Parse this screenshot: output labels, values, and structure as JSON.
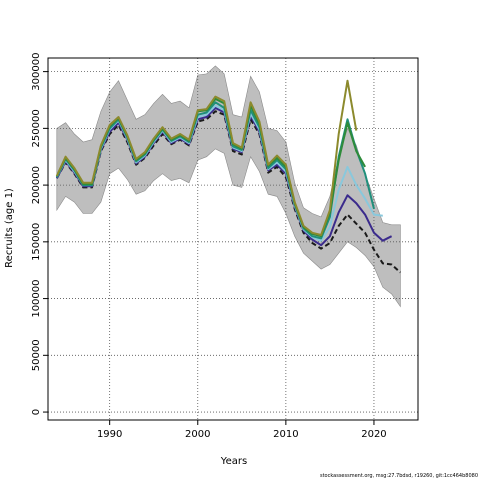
{
  "chart_data": {
    "type": "line",
    "title": "",
    "xlabel": "Years",
    "ylabel": "Recruits (age 1)",
    "xlim": [
      1983,
      2025
    ],
    "ylim": [
      -7000,
      312000
    ],
    "x_ticks": [
      1990,
      2000,
      2010,
      2020
    ],
    "y_ticks": [
      0,
      50000,
      100000,
      150000,
      200000,
      250000,
      300000
    ],
    "x_tick_labels": [
      "1990",
      "2000",
      "2010",
      "2020"
    ],
    "y_tick_labels": [
      "0",
      "50000",
      "100000",
      "150000",
      "200000",
      "250000",
      "300000"
    ],
    "grid": true,
    "legend": "none",
    "footer": "stockassessment.org, msg:27.7bdsd, r19260, git:1cc464b8080",
    "confidence_band": {
      "x": [
        1984,
        1985,
        1986,
        1987,
        1988,
        1989,
        1990,
        1991,
        1992,
        1993,
        1994,
        1995,
        1996,
        1997,
        1998,
        1999,
        2000,
        2001,
        2002,
        2003,
        2004,
        2005,
        2006,
        2007,
        2008,
        2009,
        2010,
        2011,
        2012,
        2013,
        2014,
        2015,
        2016,
        2017,
        2018,
        2019,
        2020,
        2021,
        2022,
        2023
      ],
      "upper": [
        250000,
        255000,
        245000,
        238000,
        240000,
        265000,
        282000,
        292000,
        275000,
        258000,
        262000,
        272000,
        280000,
        272000,
        274000,
        268000,
        297000,
        298000,
        305000,
        298000,
        262000,
        260000,
        296000,
        282000,
        250000,
        248000,
        238000,
        202000,
        180000,
        175000,
        172000,
        190000,
        225000,
        250000,
        235000,
        210000,
        188000,
        167000,
        165000,
        165000
      ],
      "lower": [
        178000,
        190000,
        185000,
        175000,
        175000,
        185000,
        210000,
        215000,
        205000,
        192000,
        195000,
        204000,
        210000,
        204000,
        206000,
        202000,
        222000,
        225000,
        232000,
        228000,
        200000,
        198000,
        225000,
        212000,
        192000,
        190000,
        175000,
        155000,
        140000,
        133000,
        126000,
        130000,
        140000,
        150000,
        145000,
        138000,
        128000,
        110000,
        104000,
        93000
      ]
    },
    "series": [
      {
        "color": "#1a1a1a",
        "dash": "5,3",
        "x": [
          1984,
          1985,
          1986,
          1987,
          1988,
          1989,
          1990,
          1991,
          1992,
          1993,
          1994,
          1995,
          1996,
          1997,
          1998,
          1999,
          2000,
          2001,
          2002,
          2003,
          2004,
          2005,
          2006,
          2007,
          2008,
          2009,
          2010,
          2011,
          2012,
          2013,
          2014,
          2015,
          2016,
          2017,
          2018,
          2019,
          2020,
          2021,
          2022,
          2023
        ],
        "values": [
          206000,
          220000,
          210000,
          198000,
          198000,
          230000,
          245000,
          253000,
          238000,
          218000,
          224000,
          235000,
          245000,
          236000,
          240000,
          235000,
          256000,
          258000,
          265000,
          262000,
          230000,
          227000,
          258000,
          245000,
          211000,
          216000,
          207000,
          179000,
          158000,
          149000,
          144000,
          149000,
          164000,
          174000,
          166000,
          158000,
          143000,
          131000,
          130000,
          123000
        ]
      },
      {
        "color": "#3b2b8c",
        "dash": "",
        "x": [
          1984,
          1985,
          1986,
          1987,
          1988,
          1989,
          1990,
          1991,
          1992,
          1993,
          1994,
          1995,
          1996,
          1997,
          1998,
          1999,
          2000,
          2001,
          2002,
          2003,
          2004,
          2005,
          2006,
          2007,
          2008,
          2009,
          2010,
          2011,
          2012,
          2013,
          2014,
          2015,
          2016,
          2017,
          2018,
          2019,
          2020,
          2021,
          2022
        ],
        "values": [
          206000,
          221000,
          211000,
          199000,
          199000,
          231000,
          247000,
          255000,
          240000,
          219000,
          225000,
          237000,
          247000,
          237000,
          241000,
          236000,
          258000,
          260000,
          268000,
          264000,
          232000,
          229000,
          261000,
          247000,
          213000,
          218000,
          210000,
          181000,
          160000,
          152000,
          147000,
          155000,
          176000,
          191000,
          184000,
          174000,
          158000,
          151000,
          155000
        ]
      },
      {
        "color": "#89c8dc",
        "dash": "",
        "x": [
          1984,
          1985,
          1986,
          1987,
          1988,
          1989,
          1990,
          1991,
          1992,
          1993,
          1994,
          1995,
          1996,
          1997,
          1998,
          1999,
          2000,
          2001,
          2002,
          2003,
          2004,
          2005,
          2006,
          2007,
          2008,
          2009,
          2010,
          2011,
          2012,
          2013,
          2014,
          2015,
          2016,
          2017,
          2018,
          2019,
          2020,
          2021
        ],
        "values": [
          207000,
          222000,
          212000,
          200000,
          200000,
          232000,
          249000,
          257000,
          241000,
          220000,
          226000,
          238000,
          248000,
          238000,
          242000,
          237000,
          260000,
          262000,
          270000,
          266000,
          233000,
          230000,
          263000,
          249000,
          214000,
          220000,
          212000,
          182000,
          161000,
          154000,
          151000,
          163000,
          196000,
          216000,
          200000,
          188000,
          174000,
          173000
        ]
      },
      {
        "color": "#1f8f7b",
        "dash": "",
        "x": [
          1984,
          1985,
          1986,
          1987,
          1988,
          1989,
          1990,
          1991,
          1992,
          1993,
          1994,
          1995,
          1996,
          1997,
          1998,
          1999,
          2000,
          2001,
          2002,
          2003,
          2004,
          2005,
          2006,
          2007,
          2008,
          2009,
          2010,
          2011,
          2012,
          2013,
          2014,
          2015,
          2016,
          2017,
          2018,
          2019,
          2020
        ],
        "values": [
          207000,
          223000,
          213000,
          200000,
          200000,
          233000,
          250000,
          258000,
          242000,
          221000,
          227000,
          239000,
          249000,
          239000,
          243000,
          238000,
          262000,
          264000,
          273000,
          268000,
          234000,
          231000,
          266000,
          251000,
          215000,
          222000,
          214000,
          183000,
          162000,
          155000,
          153000,
          172000,
          225000,
          258000,
          231000,
          210000,
          179000
        ]
      },
      {
        "color": "#2e8b3a",
        "dash": "",
        "x": [
          1984,
          1985,
          1986,
          1987,
          1988,
          1989,
          1990,
          1991,
          1992,
          1993,
          1994,
          1995,
          1996,
          1997,
          1998,
          1999,
          2000,
          2001,
          2002,
          2003,
          2004,
          2005,
          2006,
          2007,
          2008,
          2009,
          2010,
          2011,
          2012,
          2013,
          2014,
          2015,
          2016,
          2017,
          2018,
          2019
        ],
        "values": [
          208000,
          224000,
          214000,
          201000,
          201000,
          234000,
          252000,
          259000,
          243000,
          222000,
          228000,
          240000,
          250000,
          240000,
          244000,
          239000,
          265000,
          266000,
          276000,
          272000,
          236000,
          232000,
          270000,
          254000,
          217000,
          224000,
          216000,
          184000,
          163000,
          157000,
          155000,
          176000,
          222000,
          255000,
          230000,
          216000
        ]
      },
      {
        "color": "#8c8a2d",
        "dash": "",
        "x": [
          1984,
          1985,
          1986,
          1987,
          1988,
          1989,
          1990,
          1991,
          1992,
          1993,
          1994,
          1995,
          1996,
          1997,
          1998,
          1999,
          2000,
          2001,
          2002,
          2003,
          2004,
          2005,
          2006,
          2007,
          2008,
          2009,
          2010,
          2011,
          2012,
          2013,
          2014,
          2015,
          2016,
          2017,
          2018
        ],
        "values": [
          208000,
          225000,
          215000,
          202000,
          202000,
          235000,
          253000,
          260000,
          244000,
          223000,
          229000,
          241000,
          251000,
          241000,
          245000,
          240000,
          266000,
          267000,
          278000,
          274000,
          237000,
          233000,
          273000,
          256000,
          218000,
          226000,
          218000,
          185000,
          164000,
          158000,
          156000,
          178000,
          245000,
          292000,
          248000
        ]
      }
    ]
  }
}
